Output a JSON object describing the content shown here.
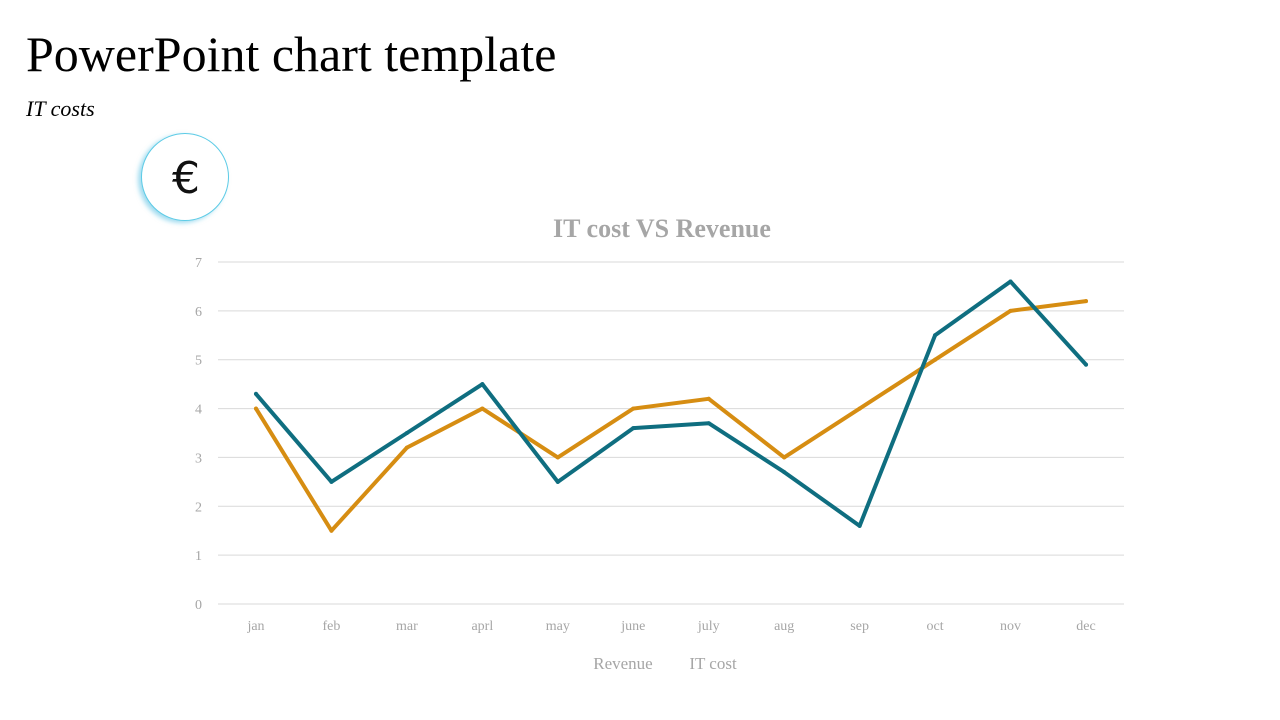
{
  "slide": {
    "title": "PowerPoint chart template",
    "subtitle": "IT costs"
  },
  "badge": {
    "icon": "euro-icon",
    "glyph": "€",
    "border_color": "#5ccbe6"
  },
  "chart_data": {
    "type": "line",
    "title": "IT cost VS Revenue",
    "xlabel": "",
    "ylabel": "",
    "categories": [
      "jan",
      "feb",
      "mar",
      "aprl",
      "may",
      "june",
      "july",
      "aug",
      "sep",
      "oct",
      "nov",
      "dec"
    ],
    "ylim": [
      0,
      7
    ],
    "yticks": [
      0,
      1,
      2,
      3,
      4,
      5,
      6,
      7
    ],
    "grid": true,
    "legend_position": "bottom",
    "series": [
      {
        "name": "Revenue",
        "color": "#d68d12",
        "values": [
          4.0,
          1.5,
          3.2,
          4.0,
          3.0,
          4.0,
          4.2,
          3.0,
          4.0,
          5.0,
          6.0,
          6.2
        ]
      },
      {
        "name": "IT  cost",
        "color": "#0f6e80",
        "values": [
          4.3,
          2.5,
          3.5,
          4.5,
          2.5,
          3.6,
          3.7,
          2.7,
          1.6,
          5.5,
          6.6,
          4.9
        ]
      }
    ]
  }
}
